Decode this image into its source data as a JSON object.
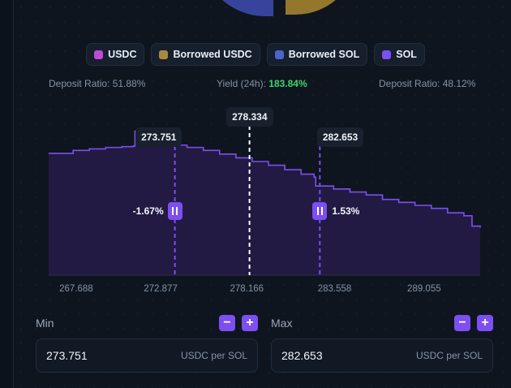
{
  "legend": [
    {
      "label": "USDC",
      "color": "#c04bd6"
    },
    {
      "label": "Borrowed USDC",
      "color": "#a88a3c"
    },
    {
      "label": "Borrowed SOL",
      "color": "#4b66c9"
    },
    {
      "label": "SOL",
      "color": "#7c4ff0"
    }
  ],
  "stats": {
    "deposit_left": "Deposit Ratio: 51.88%",
    "yield_label": "Yield (24h):",
    "yield_value": "183.84%",
    "deposit_right": "Deposit Ratio: 48.12%"
  },
  "markers": {
    "current": "278.334",
    "min": "273.751",
    "max": "282.653",
    "min_pct": "-1.67%",
    "max_pct": "1.53%"
  },
  "chart_data": {
    "type": "area",
    "x": [
      266.5,
      267.5,
      268.5,
      269.5,
      270.5,
      271.2,
      271.3,
      272.0,
      272.6,
      272.7,
      273.5,
      274.5,
      275.5,
      276.5,
      277.5,
      278.5,
      279.5,
      280.5,
      281.5,
      282.3,
      282.4,
      283.5,
      284.5,
      285.5,
      286.5,
      287.5,
      288.5,
      289.5,
      290.5,
      291.5,
      292.0,
      292.5
    ],
    "y": [
      0.82,
      0.84,
      0.85,
      0.86,
      0.865,
      0.87,
      0.97,
      0.965,
      0.96,
      0.9,
      0.875,
      0.86,
      0.84,
      0.815,
      0.79,
      0.765,
      0.74,
      0.71,
      0.68,
      0.66,
      0.6,
      0.58,
      0.56,
      0.54,
      0.51,
      0.49,
      0.47,
      0.45,
      0.42,
      0.4,
      0.33,
      0.32
    ],
    "x_ticks": [
      "267.688",
      "272.877",
      "278.166",
      "283.558",
      "289.055"
    ],
    "x_tick_values": [
      267.688,
      272.877,
      278.166,
      283.558,
      289.055
    ],
    "xlim": [
      266.0,
      292.5
    ],
    "ylim": [
      0,
      1
    ],
    "current_price": 278.334,
    "range_min": 273.751,
    "range_max": 282.653,
    "line_color": "#7c4ff0",
    "fill_color": "#221a42"
  },
  "min_field": {
    "label": "Min",
    "value": "273.751",
    "unit": "USDC per SOL",
    "minus": "−",
    "plus": "+"
  },
  "max_field": {
    "label": "Max",
    "value": "282.653",
    "unit": "USDC per SOL",
    "minus": "−",
    "plus": "+"
  }
}
